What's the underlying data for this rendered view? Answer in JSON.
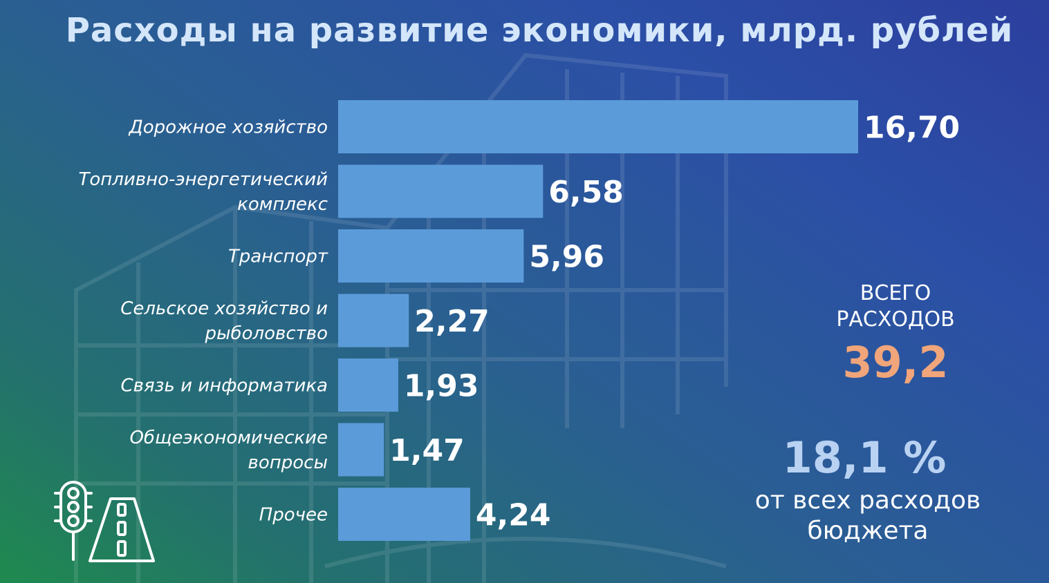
{
  "title": "Расходы на развитие экономики, млрд. рублей",
  "chart_data": {
    "type": "bar",
    "orientation": "horizontal",
    "title": "Расходы на развитие экономики, млрд. рублей",
    "categories": [
      [
        "Дорожное хозяйство"
      ],
      [
        "Топливно-энергетический",
        "комплекс"
      ],
      [
        "Транспорт"
      ],
      [
        "Сельское хозяйство и",
        "рыболовство"
      ],
      [
        "Связь и информатика"
      ],
      [
        "Общеэкономические",
        "вопросы"
      ],
      [
        "Прочее"
      ]
    ],
    "values": [
      16.7,
      6.58,
      5.96,
      2.27,
      1.93,
      1.47,
      4.24
    ],
    "value_labels": [
      "16,70",
      "6,58",
      "5,96",
      "2,27",
      "1,93",
      "1,47",
      "4,24"
    ],
    "bar_color": "#5b9bd9",
    "legend": "none",
    "grid": false
  },
  "summary": {
    "total_caption": "ВСЕГО\nРАСХОДОВ",
    "total_value": "39,2",
    "share_value": "18,1 %",
    "share_caption": "от всех расходов\nбюджета"
  },
  "colors": {
    "title": "#d4e6fa",
    "total_value": "#f0a57a",
    "share_value": "#b9d2f2"
  },
  "icons": [
    "traffic-light-icon",
    "road-icon"
  ]
}
